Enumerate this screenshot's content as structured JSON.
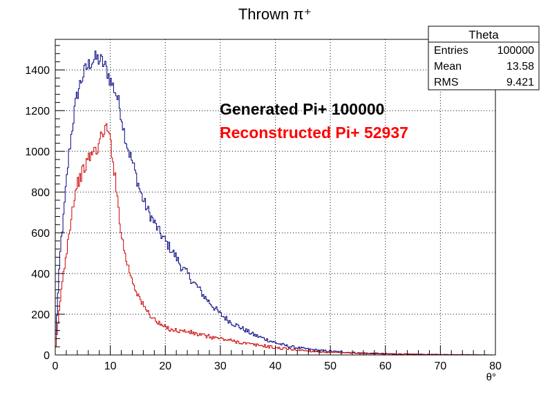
{
  "chart_data": {
    "type": "line",
    "title": "Thrown π⁺",
    "xlabel": "θ°",
    "ylabel": "",
    "xlim": [
      0,
      80
    ],
    "ylim": [
      0,
      1550
    ],
    "x_ticks": [
      "0",
      "10",
      "20",
      "30",
      "40",
      "50",
      "60",
      "70",
      "80"
    ],
    "y_ticks": [
      "0",
      "200",
      "400",
      "600",
      "800",
      "1000",
      "1200",
      "1400"
    ],
    "grid": true,
    "bin_width": 0.2,
    "series": [
      {
        "name": "Generated Pi+ 100000",
        "color": "#000080",
        "points": [
          [
            0,
            50
          ],
          [
            0.5,
            300
          ],
          [
            1,
            550
          ],
          [
            1.5,
            670
          ],
          [
            2,
            840
          ],
          [
            2.5,
            990
          ],
          [
            3,
            1100
          ],
          [
            3.5,
            1200
          ],
          [
            4,
            1280
          ],
          [
            4.5,
            1330
          ],
          [
            5,
            1370
          ],
          [
            5.5,
            1400
          ],
          [
            6,
            1420
          ],
          [
            6.5,
            1440
          ],
          [
            7,
            1450
          ],
          [
            7.5,
            1455
          ],
          [
            8,
            1450
          ],
          [
            8.5,
            1440
          ],
          [
            9,
            1420
          ],
          [
            9.5,
            1390
          ],
          [
            10,
            1350
          ],
          [
            10.5,
            1320
          ],
          [
            11,
            1290
          ],
          [
            11.5,
            1240
          ],
          [
            12,
            1180
          ],
          [
            12.5,
            1100
          ],
          [
            13,
            1040
          ],
          [
            13.5,
            990
          ],
          [
            14,
            950
          ],
          [
            14.5,
            900
          ],
          [
            15,
            850
          ],
          [
            15.5,
            800
          ],
          [
            16,
            760
          ],
          [
            17,
            700
          ],
          [
            18,
            650
          ],
          [
            19,
            600
          ],
          [
            20,
            560
          ],
          [
            21,
            520
          ],
          [
            22,
            480
          ],
          [
            23,
            430
          ],
          [
            24,
            400
          ],
          [
            25,
            360
          ],
          [
            26,
            330
          ],
          [
            27,
            290
          ],
          [
            28,
            260
          ],
          [
            29,
            230
          ],
          [
            30,
            200
          ],
          [
            32,
            160
          ],
          [
            34,
            130
          ],
          [
            36,
            100
          ],
          [
            38,
            80
          ],
          [
            40,
            60
          ],
          [
            42,
            45
          ],
          [
            44,
            35
          ],
          [
            46,
            28
          ],
          [
            48,
            22
          ],
          [
            50,
            18
          ],
          [
            55,
            10
          ],
          [
            60,
            6
          ],
          [
            65,
            3
          ],
          [
            70,
            2
          ],
          [
            75,
            1
          ],
          [
            80,
            0
          ]
        ]
      },
      {
        "name": "Reconstructed Pi+ 52937",
        "color": "#cc0000",
        "points": [
          [
            0,
            10
          ],
          [
            0.5,
            150
          ],
          [
            1,
            300
          ],
          [
            1.5,
            400
          ],
          [
            2,
            500
          ],
          [
            2.5,
            600
          ],
          [
            3,
            700
          ],
          [
            3.5,
            780
          ],
          [
            4,
            840
          ],
          [
            4.5,
            870
          ],
          [
            5,
            900
          ],
          [
            5.5,
            930
          ],
          [
            6,
            960
          ],
          [
            6.5,
            985
          ],
          [
            7,
            1000
          ],
          [
            7.5,
            1010
          ],
          [
            8,
            1040
          ],
          [
            8.5,
            1080
          ],
          [
            9,
            1120
          ],
          [
            9.5,
            1100
          ],
          [
            10,
            1060
          ],
          [
            10.5,
            960
          ],
          [
            11,
            840
          ],
          [
            11.5,
            720
          ],
          [
            12,
            600
          ],
          [
            12.5,
            520
          ],
          [
            13,
            460
          ],
          [
            13.5,
            410
          ],
          [
            14,
            370
          ],
          [
            14.5,
            330
          ],
          [
            15,
            300
          ],
          [
            15.5,
            270
          ],
          [
            16,
            240
          ],
          [
            17,
            205
          ],
          [
            18,
            175
          ],
          [
            19,
            150
          ],
          [
            20,
            135
          ],
          [
            22,
            120
          ],
          [
            24,
            115
          ],
          [
            26,
            100
          ],
          [
            28,
            90
          ],
          [
            30,
            80
          ],
          [
            32,
            70
          ],
          [
            34,
            60
          ],
          [
            36,
            50
          ],
          [
            38,
            45
          ],
          [
            40,
            35
          ],
          [
            42,
            30
          ],
          [
            44,
            25
          ],
          [
            46,
            20
          ],
          [
            48,
            16
          ],
          [
            50,
            12
          ],
          [
            55,
            8
          ],
          [
            60,
            5
          ],
          [
            65,
            3
          ],
          [
            70,
            2
          ],
          [
            75,
            1
          ],
          [
            80,
            0
          ]
        ]
      }
    ],
    "annotations": [
      {
        "text": "Generated Pi+ 100000",
        "color": "#000000"
      },
      {
        "text": "Reconstructed Pi+ 52937",
        "color": "#ff0000"
      }
    ],
    "stats_box": {
      "title": "Theta",
      "rows": [
        {
          "label": "Entries",
          "value": "100000"
        },
        {
          "label": "Mean",
          "value": "13.58"
        },
        {
          "label": "RMS",
          "value": "9.421"
        }
      ]
    }
  }
}
